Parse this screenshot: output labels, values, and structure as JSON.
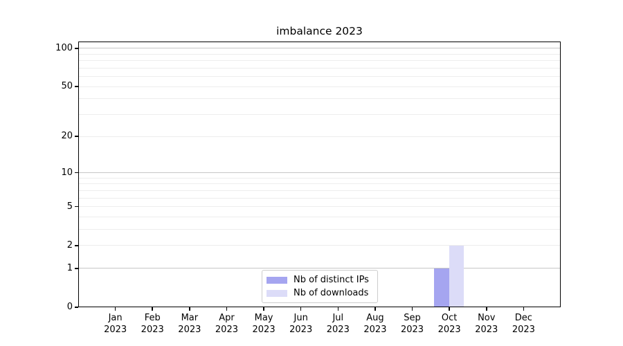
{
  "chart_data": {
    "type": "bar",
    "title": "imbalance 2023",
    "categories": [
      "Jan",
      "Feb",
      "Mar",
      "Apr",
      "May",
      "Jun",
      "Jul",
      "Aug",
      "Sep",
      "Oct",
      "Nov",
      "Dec"
    ],
    "year": "2023",
    "series": [
      {
        "name": "Nb of distinct IPs",
        "color": "#a5a5f0",
        "values": [
          0,
          0,
          0,
          0,
          0,
          0,
          0,
          0,
          0,
          1,
          0,
          0
        ]
      },
      {
        "name": "Nb of downloads",
        "color": "#dcdcf8",
        "values": [
          0,
          0,
          0,
          0,
          0,
          0,
          0,
          0,
          0,
          2,
          0,
          0
        ]
      }
    ],
    "xlabel": "",
    "ylabel": "",
    "y_scale": "log1p",
    "y_tick_values": [
      0,
      1,
      2,
      5,
      10,
      20,
      50,
      100
    ],
    "ylim": [
      0,
      113
    ],
    "grid": {
      "minor_values": [
        2,
        3,
        4,
        5,
        6,
        7,
        8,
        9,
        20,
        30,
        40,
        50,
        60,
        70,
        80,
        90
      ],
      "major_values": [
        1,
        10,
        100
      ],
      "minor_color": "#ededed",
      "major_color": "#c6c6c6"
    },
    "legend_position": "lower center"
  }
}
